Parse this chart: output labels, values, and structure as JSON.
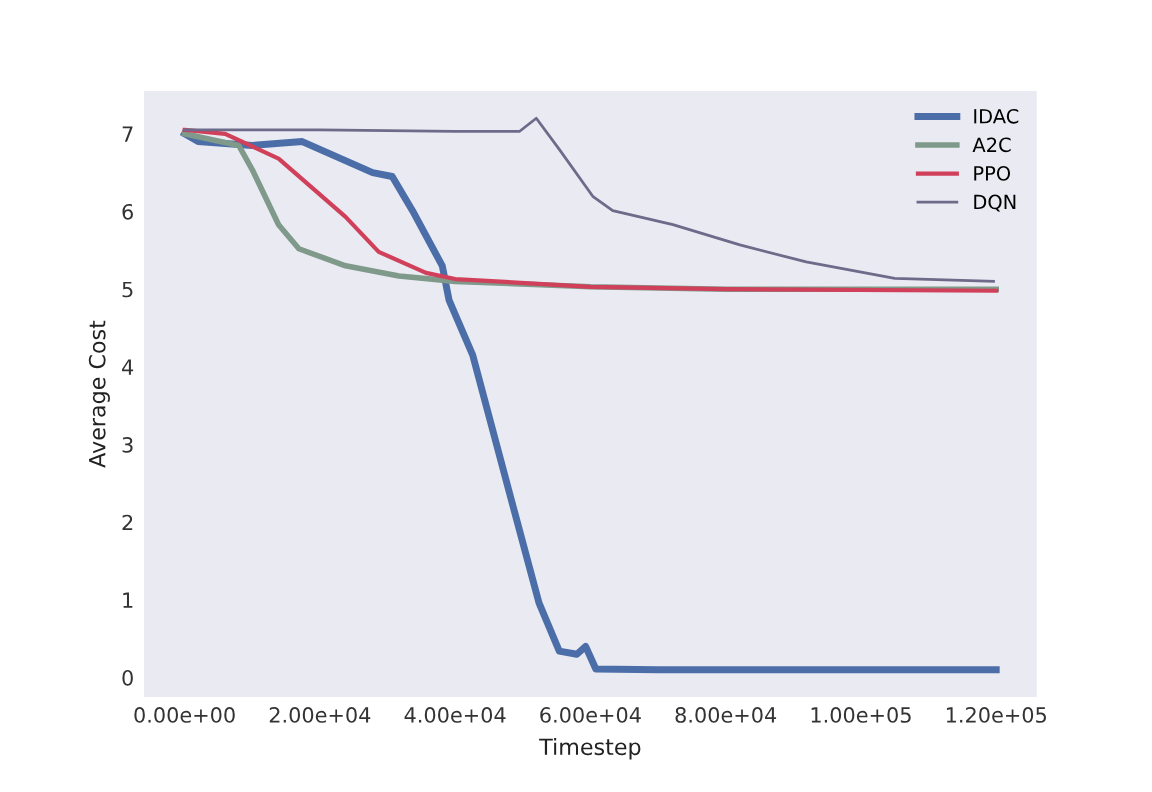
{
  "chart_data": {
    "type": "line",
    "xlabel": "Timestep",
    "ylabel": "Average Cost",
    "xlim": [
      -6000,
      126000
    ],
    "ylim": [
      -0.25,
      7.55
    ],
    "xticks": [
      {
        "value": 0,
        "label": "0.00e+00"
      },
      {
        "value": 20000,
        "label": "2.00e+04"
      },
      {
        "value": 40000,
        "label": "4.00e+04"
      },
      {
        "value": 60000,
        "label": "6.00e+04"
      },
      {
        "value": 80000,
        "label": "8.00e+04"
      },
      {
        "value": 100000,
        "label": "1.00e+05"
      },
      {
        "value": 120000,
        "label": "1.20e+05"
      }
    ],
    "yticks": [
      0,
      1,
      2,
      3,
      4,
      5,
      6,
      7
    ],
    "grid": false,
    "legend": "top right",
    "series": [
      {
        "name": "IDAC",
        "color": "#4c6ea8",
        "x": [
          0,
          2000,
          10000,
          17400,
          27800,
          30700,
          33700,
          38100,
          39100,
          42600,
          47500,
          52400,
          55400,
          58000,
          59300,
          60800,
          70000,
          90000,
          120000
        ],
        "values": [
          7.0,
          6.9,
          6.85,
          6.9,
          6.5,
          6.45,
          6.01,
          5.3,
          4.86,
          4.15,
          2.55,
          0.96,
          0.34,
          0.3,
          0.4,
          0.11,
          0.1,
          0.1,
          0.1
        ]
      },
      {
        "name": "A2C",
        "color": "#7f9a8a",
        "x": [
          0,
          8000,
          10000,
          13900,
          16900,
          23800,
          31700,
          40000,
          60000,
          80000,
          120000
        ],
        "values": [
          7.0,
          6.85,
          6.54,
          5.83,
          5.52,
          5.3,
          5.17,
          5.1,
          5.03,
          5.0,
          5.0
        ]
      },
      {
        "name": "PPO",
        "color": "#d0405a",
        "x": [
          0,
          6000,
          13900,
          23800,
          28700,
          35700,
          40000,
          60000,
          80000,
          120000
        ],
        "values": [
          7.05,
          7.0,
          6.68,
          5.93,
          5.48,
          5.21,
          5.13,
          5.03,
          5.0,
          4.98
        ]
      },
      {
        "name": "DQN",
        "color": "#6e6a8a",
        "x": [
          0,
          20000,
          40000,
          49500,
          52000,
          55400,
          60400,
          63300,
          72200,
          82100,
          91900,
          105000,
          119600
        ],
        "values": [
          7.05,
          7.05,
          7.03,
          7.03,
          7.2,
          6.8,
          6.19,
          6.01,
          5.83,
          5.57,
          5.35,
          5.14,
          5.1
        ]
      }
    ]
  }
}
